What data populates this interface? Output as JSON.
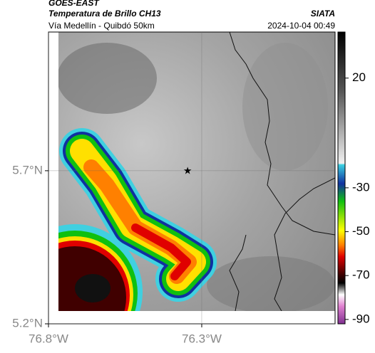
{
  "header": {
    "satellite": "GOES-EAST",
    "product": "Temperatura de Brillo CH13",
    "source": "SIATA",
    "region": "Vía Medellín - Quibdó 50km",
    "timestamp": "2024-10-04 00:49"
  },
  "map": {
    "xlim": [
      -76.8,
      -75.865
    ],
    "ylim": [
      5.2,
      6.153
    ],
    "xticks": [
      {
        "value": -76.8,
        "label": "76.8°W"
      },
      {
        "value": -76.3,
        "label": "76.3°W"
      }
    ],
    "yticks": [
      {
        "value": 5.2,
        "label": "5.2°N"
      },
      {
        "value": 5.7,
        "label": "5.7°N"
      }
    ],
    "grid": true,
    "marker": {
      "lon": -76.346,
      "lat": 5.7
    }
  },
  "colorbar": {
    "clim": [
      -92,
      41
    ],
    "ticks": [
      20,
      -30,
      -50,
      -70,
      -90
    ]
  }
}
